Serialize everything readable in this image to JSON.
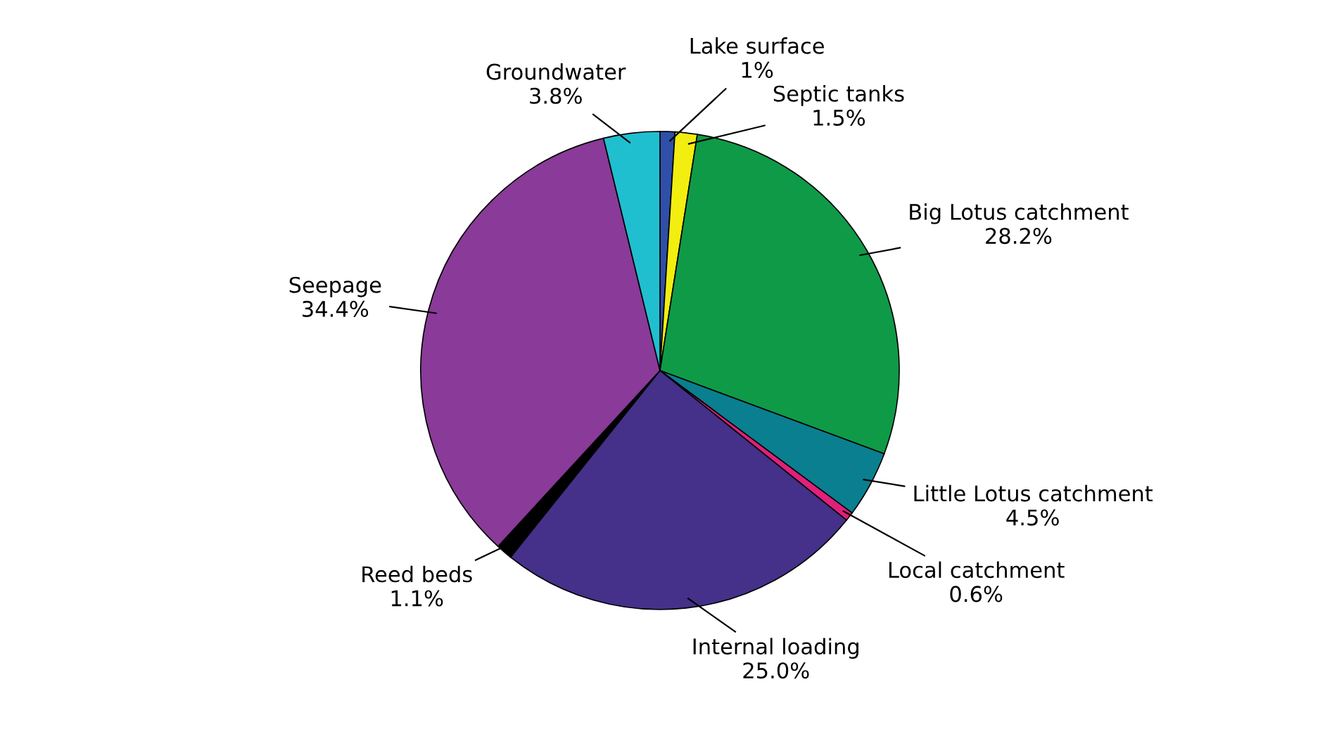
{
  "chart_data": {
    "type": "pie",
    "categories": [
      "Lake surface",
      "Septic tanks",
      "Big Lotus catchment",
      "Little Lotus catchment",
      "Local catchment",
      "Internal loading",
      "Reed beds",
      "Seepage",
      "Groundwater"
    ],
    "values": [
      1,
      1.5,
      28.2,
      4.5,
      0.6,
      25.0,
      1.1,
      34.4,
      3.8
    ],
    "value_labels": [
      "1%",
      "1.5%",
      "28.2%",
      "4.5%",
      "0.6%",
      "25.0%",
      "1.1%",
      "34.4%",
      "3.8%"
    ],
    "colors": [
      "#2f4fa8",
      "#f2ee10",
      "#0f9a48",
      "#0a7f90",
      "#e0207a",
      "#45308a",
      "#000000",
      "#8a3a98",
      "#20bfd0"
    ],
    "legend": false
  }
}
